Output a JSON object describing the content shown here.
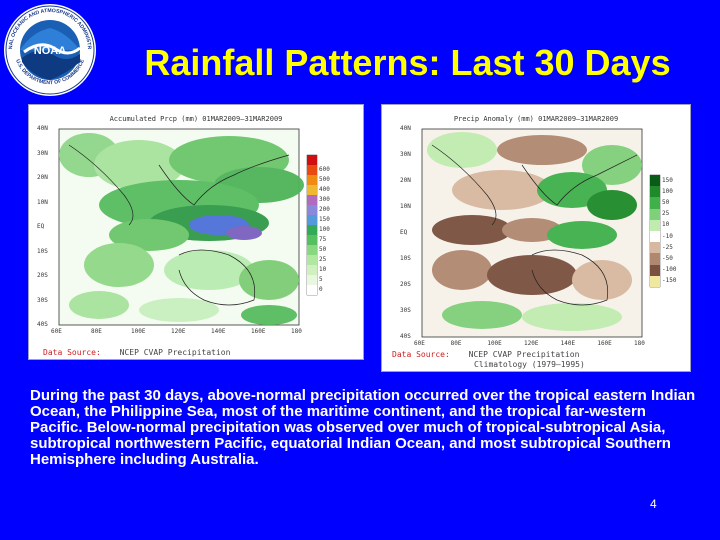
{
  "slide": {
    "title": "Rainfall Patterns: Last 30 Days",
    "page_number": "4",
    "description": "During the past 30 days, above-normal precipitation occurred over the tropical eastern Indian Ocean, the Philippine Sea, most of the maritime continent, and the tropical far-western Pacific. Below-normal precipitation was observed over much of tropical-subtropical Asia, subtropical northwestern Pacific, equatorial Indian Ocean, and most subtropical Southern Hemisphere including Australia.",
    "colors": {
      "background": "#0000ff",
      "title": "#ffff00",
      "text": "#ffffff"
    }
  },
  "logo": {
    "icon": "noaa-logo-icon",
    "center_text": "NOAA",
    "ring_text_top": "NATIONAL OCEANIC AND ATMOSPHERIC ADMINISTRATION",
    "ring_text_bottom": "U.S. DEPARTMENT OF COMMERCE"
  },
  "map_left": {
    "header": "Accumulated Prcp (mm) 01MAR2009–31MAR2009",
    "source_label": "Data Source:",
    "source_value": "NCEP CVAP Precipitation",
    "colorbar": [
      "",
      "600",
      "500",
      "400",
      "300",
      "200",
      "150",
      "100",
      "75",
      "50",
      "25",
      "10",
      "5",
      "0"
    ],
    "colorbar_colors": [
      "#d01010",
      "#e84a10",
      "#f08a10",
      "#f0b830",
      "#b06abf",
      "#8888dd",
      "#5599dd",
      "#33aa55",
      "#55c060",
      "#88d880",
      "#b0e8a0",
      "#d0f0c0",
      "#e8f8e0",
      "#ffffff"
    ],
    "lat_labels": [
      "40N",
      "30N",
      "20N",
      "10N",
      "EQ",
      "10S",
      "20S",
      "30S",
      "40S"
    ],
    "lon_labels": [
      "60E",
      "80E",
      "100E",
      "120E",
      "140E",
      "160E",
      "180"
    ]
  },
  "map_right": {
    "header": "Precip Anomaly (mm) 01MAR2009–31MAR2009",
    "source_label": "Data Source:",
    "source_value": "NCEP CVAP Precipitation",
    "source_value_2": "Climatology (1979–1995)",
    "colorbar": [
      "150",
      "100",
      "50",
      "25",
      "10",
      "-10",
      "-25",
      "-50",
      "-100",
      "-150"
    ],
    "colorbar_colors": [
      "#0a5a1a",
      "#1f8a2a",
      "#3fb04a",
      "#7fd07a",
      "#c0ecb0",
      "#ffffff",
      "#d8b8a0",
      "#b08870",
      "#7a5040",
      "#f0e8a0"
    ],
    "lat_labels": [
      "40N",
      "30N",
      "20N",
      "10N",
      "EQ",
      "10S",
      "20S",
      "30S",
      "40S"
    ],
    "lon_labels": [
      "60E",
      "80E",
      "100E",
      "120E",
      "140E",
      "160E",
      "180"
    ]
  }
}
